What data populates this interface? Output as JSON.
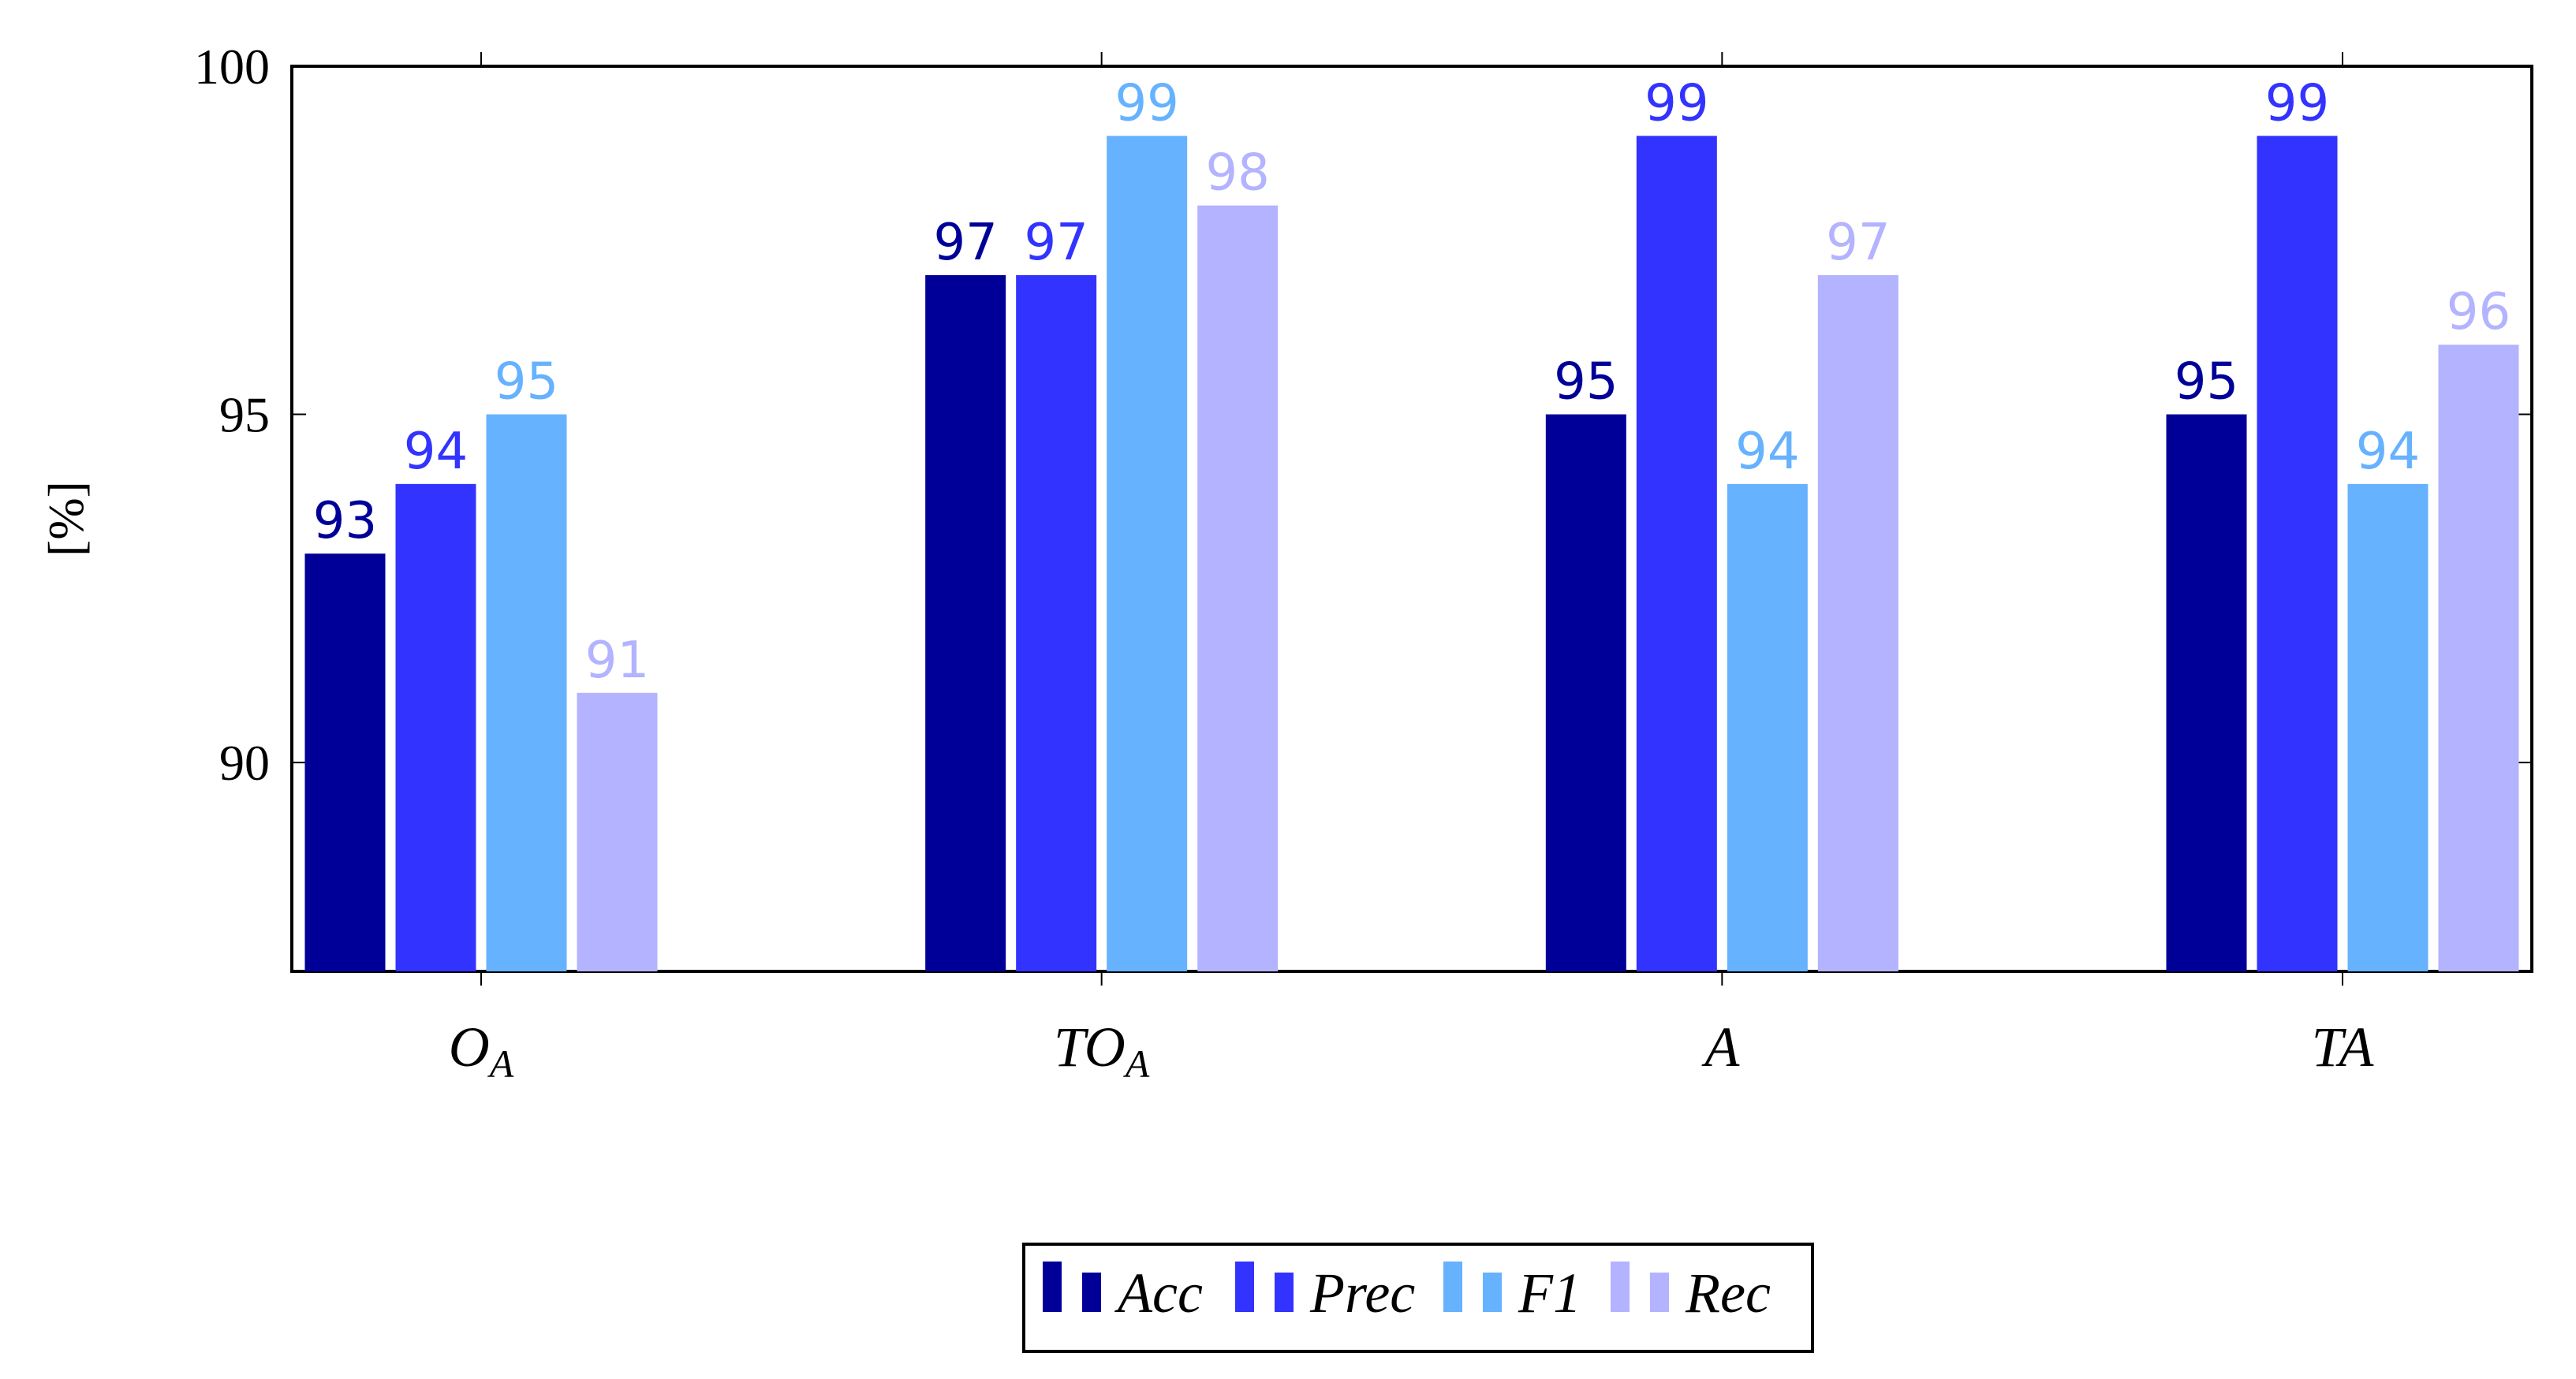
{
  "chart_data": {
    "type": "bar",
    "categories": [
      {
        "base": "O",
        "sub": "A"
      },
      {
        "base": "TO",
        "sub": "A"
      },
      {
        "base": "A",
        "sub": ""
      },
      {
        "base": "TA",
        "sub": ""
      }
    ],
    "series": [
      {
        "name": "Acc",
        "color": "#000099",
        "values": [
          93,
          97,
          95,
          95
        ]
      },
      {
        "name": "Prec",
        "color": "#3333ff",
        "values": [
          94,
          97,
          99,
          99
        ]
      },
      {
        "name": "F1",
        "color": "#66b2ff",
        "values": [
          95,
          99,
          94,
          94
        ]
      },
      {
        "name": "Rec",
        "color": "#b3b3ff",
        "values": [
          91,
          98,
          97,
          96
        ]
      }
    ],
    "ylabel": "[%]",
    "ylim": [
      87,
      100
    ],
    "yticks": [
      90,
      95,
      100
    ],
    "grid": false,
    "legend": "bottom-center"
  }
}
